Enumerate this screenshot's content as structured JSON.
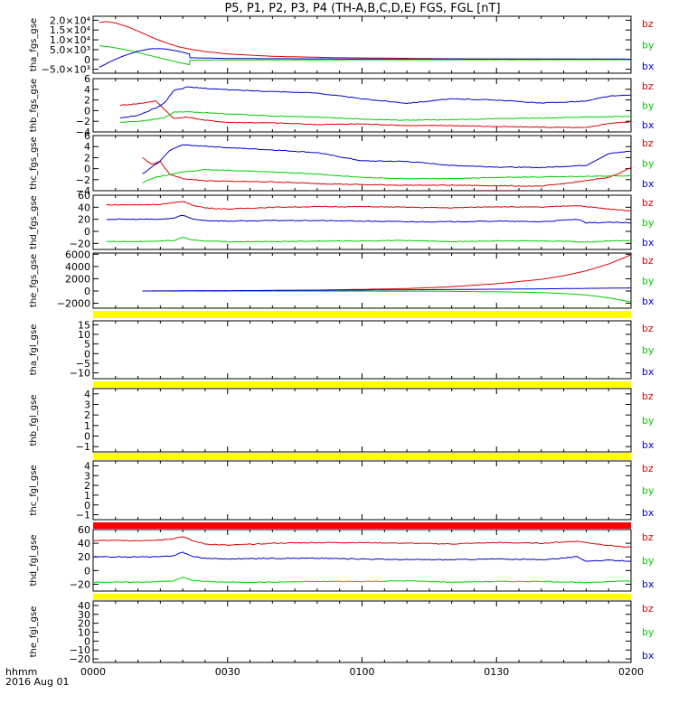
{
  "title": "P5, P1, P2, P3, P4 (TH-A,B,C,D,E) FGS, FGL [nT]",
  "time_axis": {
    "ticks": [
      "0000",
      "0030",
      "0100",
      "0130",
      "0200"
    ],
    "units_label": "hhmm",
    "date_label": "2016 Aug 01"
  },
  "legend": [
    "bz",
    "by",
    "bx"
  ],
  "colors": {
    "bz": "#dd0000",
    "by": "#00cc00",
    "bx": "#0000cc",
    "bar_yellow": "#ffff00",
    "bar_red": "#ff0000"
  },
  "chart_data": [
    {
      "type": "line",
      "ylabel": "tha_fgs_gse",
      "ylim": [
        -7000,
        22000
      ],
      "yticks": [
        "−5.0×10³",
        "0",
        "5.0×10³",
        "1.0×10⁴",
        "1.5×10⁴",
        "2.0×10⁴"
      ],
      "ytick_values": [
        -5000,
        0,
        5000,
        10000,
        15000,
        20000
      ],
      "x_minutes_range": [
        0,
        120
      ],
      "series": [
        {
          "name": "bz",
          "x": [
            1.4,
            3,
            5,
            8,
            11,
            14,
            17,
            19.5,
            21.5,
            25,
            30,
            40,
            55,
            80,
            120
          ],
          "values": [
            18800,
            19300,
            18600,
            16400,
            13500,
            10400,
            7900,
            6200,
            5300,
            4000,
            2800,
            1600,
            900,
            350,
            150
          ]
        },
        {
          "name": "by",
          "x": [
            1.4,
            4,
            7,
            10,
            13,
            16,
            19,
            21.5,
            21.6,
            30,
            60,
            120
          ],
          "values": [
            7000,
            6300,
            5100,
            3500,
            1800,
            200,
            -1500,
            -2600,
            -400,
            -200,
            -150,
            -100
          ]
        },
        {
          "name": "bx",
          "x": [
            1.4,
            4,
            7,
            10,
            13,
            16,
            19,
            21.5,
            21.6,
            30,
            60,
            120
          ],
          "values": [
            -4000,
            -900,
            2000,
            4200,
            5500,
            5400,
            4200,
            2800,
            900,
            500,
            250,
            150
          ]
        }
      ]
    },
    {
      "type": "line",
      "ylabel": "thb_fgs_gse",
      "ylim": [
        -4,
        6
      ],
      "yticks": [
        "−4",
        "−2",
        "0",
        "2",
        "4",
        "6"
      ],
      "ytick_values": [
        -4,
        -2,
        0,
        2,
        4,
        6
      ],
      "x_minutes_range": [
        0,
        120
      ],
      "series": [
        {
          "name": "bz",
          "x": [
            6,
            10,
            14,
            16,
            18,
            21,
            25,
            30,
            40,
            50,
            60,
            70,
            80,
            90,
            100,
            110,
            115,
            120
          ],
          "values": [
            1,
            1.3,
            1.8,
            0.2,
            -1.5,
            -1.2,
            -1.8,
            -2.2,
            -2.3,
            -2.6,
            -2.5,
            -2.8,
            -2.8,
            -3,
            -3.1,
            -3.2,
            -2.4,
            -2.1
          ]
        },
        {
          "name": "by",
          "x": [
            6,
            10,
            14,
            16,
            18,
            21,
            25,
            30,
            40,
            50,
            60,
            70,
            80,
            90,
            100,
            110,
            120
          ],
          "values": [
            -2.2,
            -2,
            -1.6,
            -1.3,
            -0.3,
            -0.2,
            -0.4,
            -0.6,
            -1,
            -1.2,
            -1.6,
            -1.8,
            -1.7,
            -1.5,
            -1.4,
            -1.2,
            -1.1
          ]
        },
        {
          "name": "bx",
          "x": [
            6,
            10,
            14,
            16,
            18,
            21,
            25,
            30,
            40,
            50,
            60,
            70,
            80,
            90,
            100,
            110,
            115,
            120
          ],
          "values": [
            -1.4,
            -0.9,
            0.5,
            1.5,
            3.8,
            4.4,
            4.2,
            3.9,
            3.6,
            3.3,
            2.2,
            1.4,
            2.2,
            2,
            1.4,
            1.8,
            2.7,
            2.9
          ]
        }
      ]
    },
    {
      "type": "line",
      "ylabel": "thc_fgs_gse",
      "ylim": [
        -4,
        6
      ],
      "yticks": [
        "−4",
        "−2",
        "0",
        "2",
        "4",
        "6"
      ],
      "ytick_values": [
        -4,
        -2,
        0,
        2,
        4,
        6
      ],
      "x_minutes_range": [
        0,
        120
      ],
      "series": [
        {
          "name": "bz",
          "x": [
            11,
            13,
            15,
            17,
            20,
            25,
            30,
            40,
            50,
            60,
            70,
            80,
            90,
            100,
            106,
            110,
            115,
            118,
            120
          ],
          "values": [
            2,
            0.8,
            1.3,
            -1,
            -1.8,
            -2.2,
            -2.3,
            -2.4,
            -2.7,
            -2.9,
            -3,
            -3,
            -3.1,
            -3.2,
            -2.6,
            -2.2,
            -1.6,
            -0.6,
            0.2
          ]
        },
        {
          "name": "by",
          "x": [
            11,
            13,
            15,
            17,
            20,
            25,
            30,
            40,
            50,
            60,
            70,
            80,
            90,
            100,
            110,
            120
          ],
          "values": [
            -2.6,
            -1.8,
            -1.4,
            -1.1,
            -0.6,
            -0.2,
            -0.3,
            -0.6,
            -1,
            -1.6,
            -1.8,
            -1.8,
            -1.6,
            -1.5,
            -1.4,
            -1.3
          ]
        },
        {
          "name": "bx",
          "x": [
            11,
            13,
            15,
            17,
            20,
            25,
            30,
            40,
            50,
            60,
            70,
            80,
            90,
            100,
            110,
            115,
            120
          ],
          "values": [
            -1,
            0.2,
            1.4,
            3.3,
            4.3,
            4.1,
            3.8,
            3.4,
            2.9,
            1.4,
            1.3,
            0.6,
            0.3,
            0.2,
            0.6,
            2.7,
            3.2
          ]
        }
      ]
    },
    {
      "type": "line",
      "ylabel": "thd_fgs_gse",
      "ylim": [
        -30,
        60
      ],
      "yticks": [
        "−20",
        "0",
        "20",
        "40",
        "60"
      ],
      "ytick_values": [
        -20,
        0,
        20,
        40,
        60
      ],
      "x_minutes_range": [
        0,
        120
      ],
      "series": [
        {
          "name": "bz",
          "x": [
            3,
            10,
            15,
            18,
            20,
            22,
            25,
            30,
            40,
            50,
            60,
            70,
            80,
            90,
            100,
            108,
            110,
            115,
            120
          ],
          "values": [
            44,
            44,
            45,
            47,
            50,
            44,
            39,
            37,
            40,
            41,
            41,
            40,
            39,
            41,
            40,
            43,
            41,
            37,
            34
          ]
        },
        {
          "name": "by",
          "x": [
            3,
            10,
            15,
            18,
            20,
            22,
            25,
            30,
            40,
            50,
            60,
            70,
            80,
            90,
            100,
            108,
            110,
            115,
            120
          ],
          "values": [
            -17,
            -17,
            -16,
            -15,
            -10,
            -14,
            -16,
            -17,
            -17,
            -16,
            -16,
            -15,
            -17,
            -16,
            -16,
            -17,
            -18,
            -16,
            -15
          ]
        },
        {
          "name": "bx",
          "x": [
            3,
            10,
            15,
            18,
            20,
            22,
            25,
            30,
            40,
            50,
            60,
            70,
            80,
            90,
            100,
            108,
            110,
            115,
            120
          ],
          "values": [
            20,
            20,
            20,
            22,
            27,
            21,
            18,
            17,
            18,
            18,
            17,
            16,
            16,
            17,
            16,
            20,
            14,
            15,
            14
          ]
        }
      ]
    },
    {
      "type": "line",
      "ylabel": "the_fgs_gse",
      "ylim": [
        -2800,
        6200
      ],
      "yticks": [
        "−2000",
        "0",
        "2000",
        "4000",
        "6000"
      ],
      "ytick_values": [
        -2000,
        0,
        2000,
        4000,
        6000
      ],
      "x_minutes_range": [
        0,
        120
      ],
      "series": [
        {
          "name": "bz",
          "x": [
            11,
            30,
            50,
            70,
            80,
            90,
            100,
            105,
            110,
            115,
            120
          ],
          "values": [
            0,
            40,
            150,
            400,
            700,
            1200,
            1900,
            2500,
            3300,
            4400,
            5900
          ]
        },
        {
          "name": "by",
          "x": [
            11,
            60,
            80,
            90,
            100,
            105,
            110,
            115,
            120
          ],
          "values": [
            0,
            -10,
            -50,
            -120,
            -250,
            -400,
            -650,
            -1100,
            -1800
          ]
        },
        {
          "name": "bx",
          "x": [
            11,
            30,
            50,
            70,
            90,
            100,
            110,
            120
          ],
          "values": [
            0,
            60,
            120,
            200,
            300,
            360,
            430,
            500
          ]
        }
      ]
    },
    {
      "type": "line",
      "ylabel": "tha_fgl_gse",
      "ylim": [
        -13,
        17
      ],
      "yticks": [
        "−10",
        "−5",
        "0",
        "5",
        "10",
        "15"
      ],
      "ytick_values": [
        -10,
        -5,
        0,
        5,
        10,
        15
      ],
      "x_minutes_range": [
        0,
        120
      ],
      "series": []
    },
    {
      "type": "line",
      "ylabel": "thb_fgl_gse",
      "ylim": [
        -1.5,
        4.5
      ],
      "yticks": [
        "−1",
        "0",
        "1",
        "2",
        "3",
        "4"
      ],
      "ytick_values": [
        -1,
        0,
        1,
        2,
        3,
        4
      ],
      "x_minutes_range": [
        0,
        120
      ],
      "series": []
    },
    {
      "type": "line",
      "ylabel": "thc_fgl_gse",
      "ylim": [
        -1.5,
        4.5
      ],
      "yticks": [
        "−1",
        "0",
        "1",
        "2",
        "3",
        "4"
      ],
      "ytick_values": [
        -1,
        0,
        1,
        2,
        3,
        4
      ],
      "x_minutes_range": [
        0,
        120
      ],
      "series": []
    },
    {
      "type": "line",
      "ylabel": "thd_fgl_gse",
      "ylim": [
        -30,
        60
      ],
      "yticks": [
        "−20",
        "0",
        "20",
        "40",
        "60"
      ],
      "ytick_values": [
        -20,
        0,
        20,
        40,
        60
      ],
      "x_minutes_range": [
        0,
        120
      ],
      "series": [
        {
          "name": "bz",
          "x": [
            0,
            10,
            15,
            18,
            20,
            22,
            25,
            30,
            40,
            50,
            60,
            70,
            80,
            90,
            100,
            108,
            110,
            115,
            120
          ],
          "values": [
            44,
            44,
            45,
            47,
            50,
            44,
            39,
            37,
            40,
            41,
            41,
            40,
            39,
            41,
            40,
            43,
            41,
            37,
            34
          ]
        },
        {
          "name": "by",
          "x": [
            0,
            10,
            15,
            18,
            20,
            22,
            25,
            30,
            40,
            50,
            60,
            70,
            80,
            90,
            100,
            108,
            110,
            115,
            120
          ],
          "values": [
            -17,
            -17,
            -16,
            -15,
            -10,
            -14,
            -16,
            -17,
            -17,
            -16,
            -16,
            -15,
            -17,
            -16,
            -16,
            -17,
            -18,
            -16,
            -15
          ]
        },
        {
          "name": "bx",
          "x": [
            0,
            10,
            15,
            18,
            20,
            22,
            25,
            30,
            40,
            50,
            60,
            70,
            80,
            90,
            100,
            108,
            110,
            115,
            120
          ],
          "values": [
            20,
            20,
            20,
            22,
            27,
            21,
            18,
            17,
            18,
            18,
            17,
            16,
            16,
            17,
            16,
            20,
            14,
            15,
            14
          ]
        }
      ]
    },
    {
      "type": "line",
      "ylabel": "the_fgl_gse",
      "ylim": [
        -24,
        45
      ],
      "yticks": [
        "−20",
        "−10",
        "0",
        "10",
        "20",
        "30",
        "40"
      ],
      "ytick_values": [
        -20,
        -10,
        0,
        10,
        20,
        30,
        40
      ],
      "x_minutes_range": [
        0,
        120
      ],
      "series": []
    }
  ],
  "bars": [
    "yellow",
    "yellow",
    "yellow",
    "red",
    "yellow"
  ]
}
